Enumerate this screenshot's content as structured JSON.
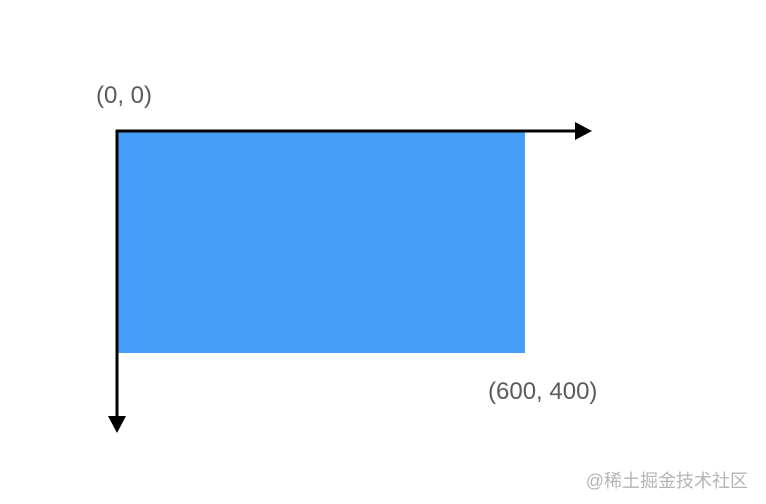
{
  "labels": {
    "origin": "(0, 0)",
    "corner": "(600, 400)"
  },
  "watermark": "@稀土掘金技术社区",
  "colors": {
    "rectangle_fill": "#479ef8",
    "axis": "#000000",
    "label_text": "#5b5b5b",
    "watermark_text": "#b5b5b5"
  }
}
